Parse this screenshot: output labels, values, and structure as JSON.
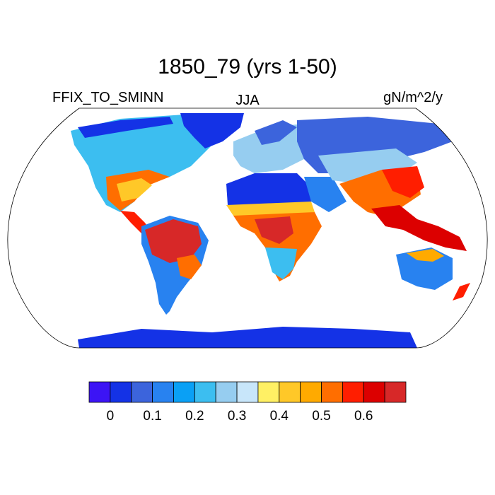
{
  "title": "1850_79 (yrs 1-50)",
  "left_label": "FFIX_TO_SMINN",
  "center_label": "JJA",
  "right_label": "gN/m^2/y",
  "colorbar": {
    "colors": [
      "#3c14f5",
      "#1432e6",
      "#3c64dc",
      "#2882f0",
      "#0aa0f5",
      "#3cbef0",
      "#96cdf0",
      "#c8e6fa",
      "#fff064",
      "#ffc828",
      "#ffaa00",
      "#ff6e00",
      "#ff1e00",
      "#dc0000",
      "#d72828"
    ],
    "tick_labels": [
      "0",
      "0.1",
      "0.2",
      "0.3",
      "0.4",
      "0.5",
      "0.6"
    ]
  }
}
